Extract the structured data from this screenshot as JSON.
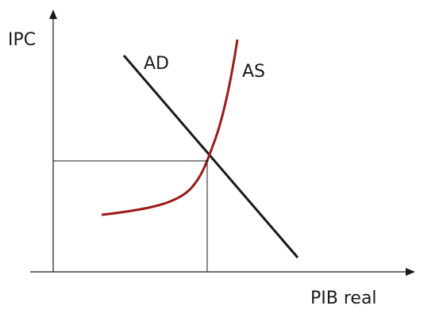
{
  "diagram": {
    "y_axis_label": "IPC",
    "x_axis_label": "PIB real",
    "curves": [
      {
        "id": "ad",
        "label": "AD",
        "color": "#1a1a1a"
      },
      {
        "id": "as",
        "label": "AS",
        "color": "#9b1c1c"
      }
    ],
    "equilibrium_guides": true
  }
}
